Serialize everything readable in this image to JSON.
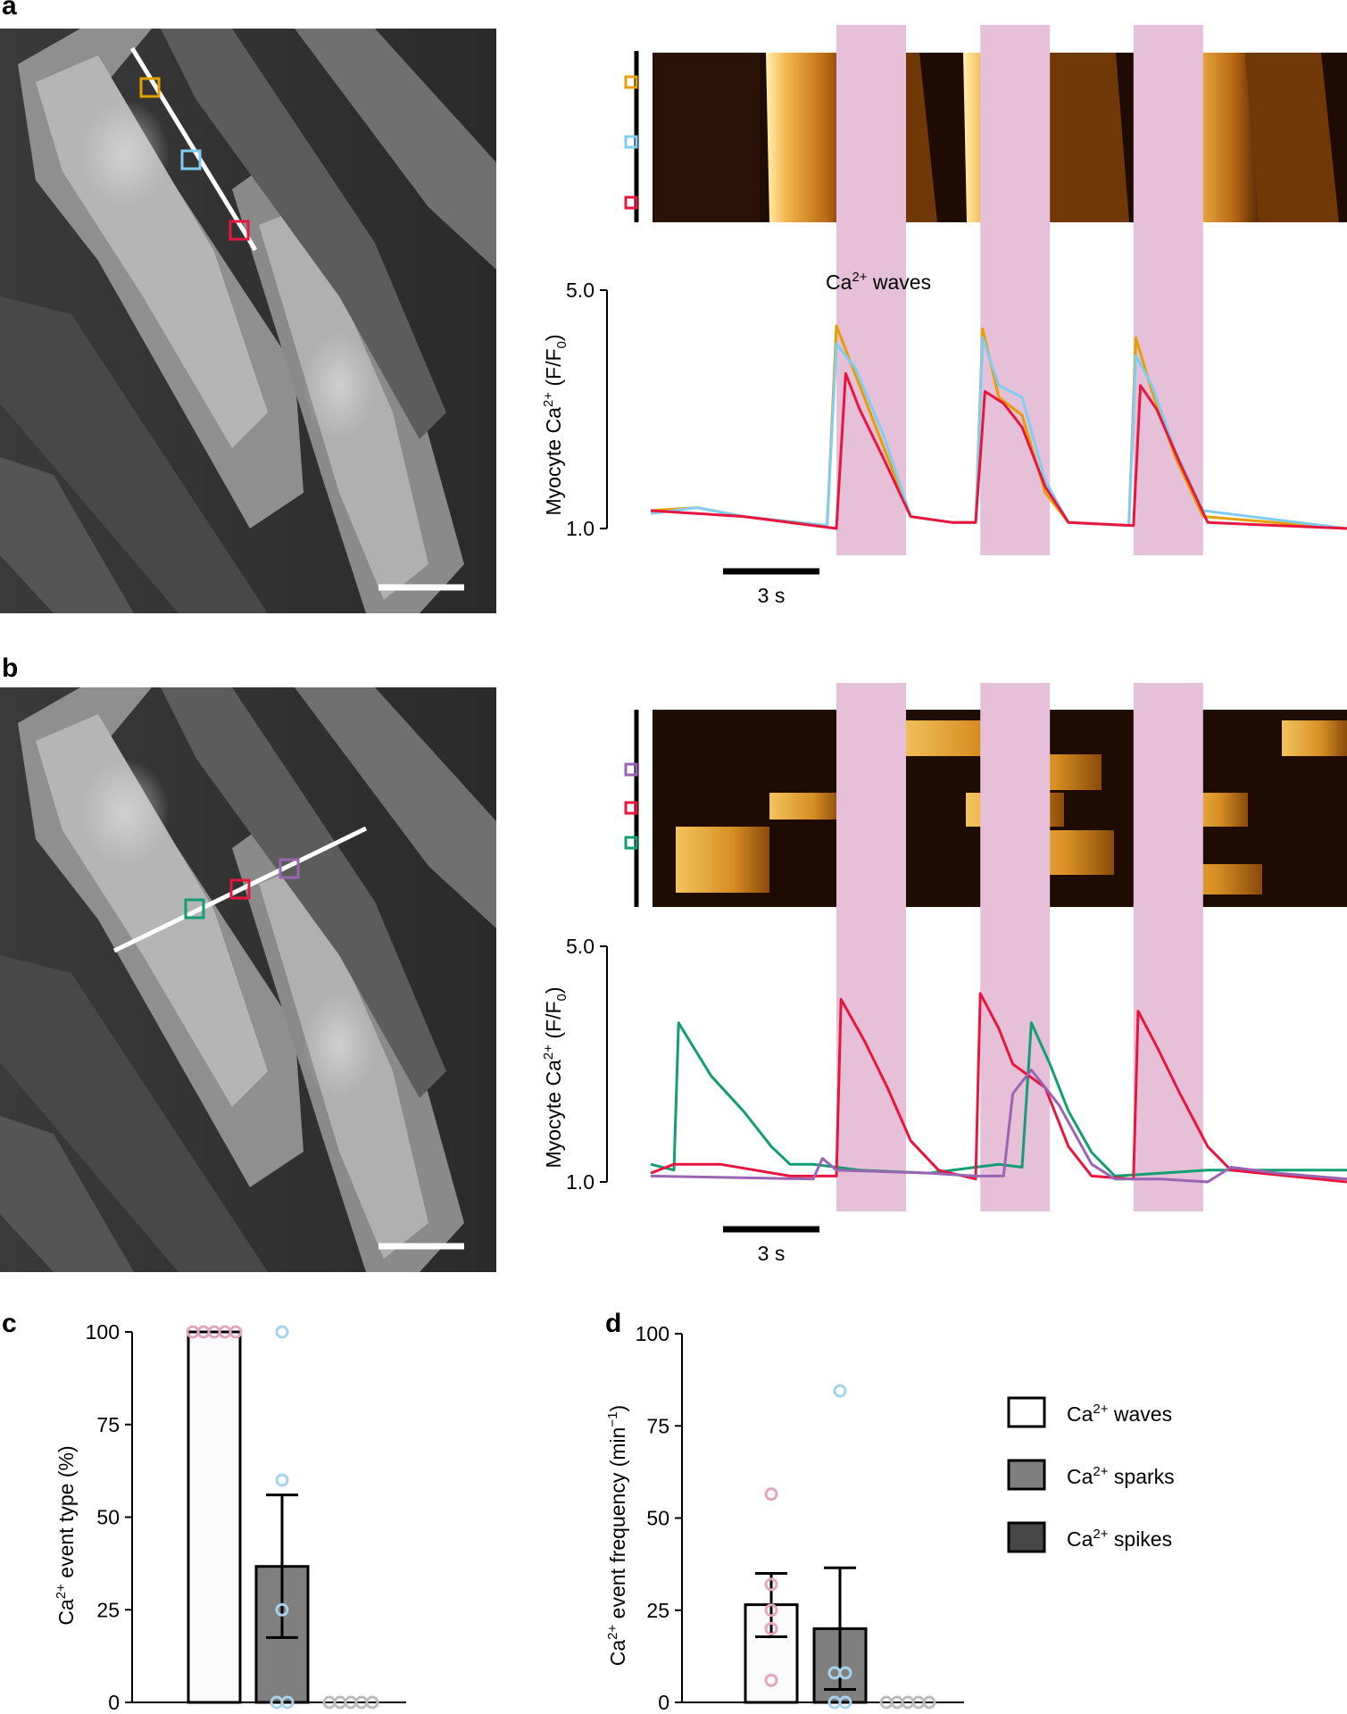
{
  "colors": {
    "orange": "#e69f00",
    "skyblue": "#7fcdf2",
    "red": "#e8163f",
    "green": "#119e73",
    "purple": "#9a63b4",
    "pink_band": "#e6bfd9",
    "pink_dot": "#e3a6bf",
    "blue_dot": "#a6d2ec",
    "gray_dot": "#bdbdbd",
    "bar_waves": "#ffffff",
    "bar_sparks": "#7f7f7f",
    "bar_spikes": "#474747"
  },
  "panels": {
    "a": {
      "label": "a",
      "annotation": "Ca",
      "annotation_sup": "2+",
      "annotation_suffix": " waves",
      "scalebar_label": "3 s",
      "ylabel": "Myocyte Ca",
      "ylabel_sup": "2+",
      "ylabel_suffix": " (F/F",
      "ylabel_sub": "0",
      "ylabel_end": ")",
      "yticks": [
        "1.0",
        "5.0"
      ],
      "roi_colors": [
        "orange",
        "skyblue",
        "red"
      ]
    },
    "b": {
      "label": "b",
      "scalebar_label": "3 s",
      "ylabel": "Myocyte Ca",
      "ylabel_sup": "2+",
      "ylabel_suffix": " (F/F",
      "ylabel_sub": "0",
      "ylabel_end": ")",
      "yticks": [
        "1.0",
        "5.0"
      ],
      "roi_colors": [
        "purple",
        "red",
        "green"
      ]
    },
    "c": {
      "label": "c"
    },
    "d": {
      "label": "d"
    }
  },
  "legend": [
    {
      "label": "Ca",
      "sup": "2+",
      "suffix": " waves",
      "fill": "bar_waves"
    },
    {
      "label": "Ca",
      "sup": "2+",
      "suffix": " sparks",
      "fill": "bar_sparks"
    },
    {
      "label": "Ca",
      "sup": "2+",
      "suffix": " spikes",
      "fill": "bar_spikes"
    }
  ],
  "chart_data": [
    {
      "panel": "a",
      "type": "line",
      "ylim": [
        1.0,
        5.0
      ],
      "y_ticks": [
        1.0,
        5.0
      ],
      "x_unit": "s",
      "x_range": [
        -1.0,
        14.0
      ],
      "shaded_intervals": [
        [
          3.0,
          4.5
        ],
        [
          6.1,
          7.6
        ],
        [
          9.4,
          10.9
        ]
      ],
      "series": [
        {
          "color": "orange",
          "points": [
            [
              -1,
              1.3
            ],
            [
              0,
              1.35
            ],
            [
              1,
              1.2
            ],
            [
              2.8,
              1.05
            ],
            [
              3.0,
              4.4
            ],
            [
              3.4,
              3.6
            ],
            [
              4.0,
              2.4
            ],
            [
              4.6,
              1.2
            ],
            [
              5.5,
              1.1
            ],
            [
              6.0,
              1.1
            ],
            [
              6.15,
              4.35
            ],
            [
              6.5,
              3.2
            ],
            [
              7.0,
              2.9
            ],
            [
              7.5,
              1.6
            ],
            [
              8.0,
              1.1
            ],
            [
              9.3,
              1.05
            ],
            [
              9.45,
              4.2
            ],
            [
              9.8,
              3.3
            ],
            [
              10.3,
              2.2
            ],
            [
              10.9,
              1.2
            ],
            [
              14,
              1.0
            ]
          ]
        },
        {
          "color": "skyblue",
          "points": [
            [
              -1,
              1.25
            ],
            [
              0,
              1.35
            ],
            [
              1,
              1.2
            ],
            [
              2.8,
              1.05
            ],
            [
              3.0,
              4.1
            ],
            [
              3.4,
              3.7
            ],
            [
              4.0,
              2.6
            ],
            [
              4.6,
              1.2
            ],
            [
              5.5,
              1.1
            ],
            [
              6.0,
              1.1
            ],
            [
              6.15,
              4.2
            ],
            [
              6.5,
              3.4
            ],
            [
              7.0,
              3.2
            ],
            [
              7.5,
              1.8
            ],
            [
              8.0,
              1.1
            ],
            [
              9.3,
              1.05
            ],
            [
              9.45,
              3.9
            ],
            [
              9.8,
              3.4
            ],
            [
              10.3,
              2.3
            ],
            [
              10.9,
              1.3
            ],
            [
              14,
              1.0
            ]
          ]
        },
        {
          "color": "red",
          "points": [
            [
              -1,
              1.3
            ],
            [
              0,
              1.25
            ],
            [
              1,
              1.2
            ],
            [
              3.0,
              1.0
            ],
            [
              3.2,
              3.6
            ],
            [
              3.5,
              3.0
            ],
            [
              4.0,
              2.2
            ],
            [
              4.6,
              1.2
            ],
            [
              5.5,
              1.1
            ],
            [
              6.0,
              1.1
            ],
            [
              6.2,
              3.3
            ],
            [
              6.6,
              3.1
            ],
            [
              7.0,
              2.7
            ],
            [
              7.5,
              1.7
            ],
            [
              8.0,
              1.1
            ],
            [
              9.4,
              1.05
            ],
            [
              9.55,
              3.4
            ],
            [
              9.9,
              3.0
            ],
            [
              10.4,
              2.1
            ],
            [
              11.0,
              1.1
            ],
            [
              14,
              1.0
            ]
          ]
        }
      ]
    },
    {
      "panel": "b",
      "type": "line",
      "ylim": [
        1.0,
        5.0
      ],
      "y_ticks": [
        1.0,
        5.0
      ],
      "x_unit": "s",
      "x_range": [
        -1.0,
        14.0
      ],
      "shaded_intervals": [
        [
          3.0,
          4.5
        ],
        [
          6.1,
          7.6
        ],
        [
          9.4,
          10.9
        ]
      ],
      "series": [
        {
          "color": "green",
          "points": [
            [
              -1,
              1.3
            ],
            [
              -0.5,
              1.2
            ],
            [
              -0.4,
              3.7
            ],
            [
              0.3,
              2.8
            ],
            [
              1,
              2.2
            ],
            [
              1.6,
              1.6
            ],
            [
              2.0,
              1.3
            ],
            [
              2.5,
              1.3
            ],
            [
              3.5,
              1.2
            ],
            [
              5.0,
              1.15
            ],
            [
              6.0,
              1.25
            ],
            [
              6.5,
              1.3
            ],
            [
              7.0,
              1.25
            ],
            [
              7.2,
              3.7
            ],
            [
              7.6,
              3.0
            ],
            [
              8.0,
              2.2
            ],
            [
              8.5,
              1.5
            ],
            [
              9.0,
              1.1
            ],
            [
              10.0,
              1.15
            ],
            [
              11.0,
              1.2
            ],
            [
              14,
              1.2
            ]
          ]
        },
        {
          "color": "red",
          "points": [
            [
              -1,
              1.15
            ],
            [
              -0.5,
              1.3
            ],
            [
              0.5,
              1.3
            ],
            [
              2.0,
              1.1
            ],
            [
              3.0,
              1.1
            ],
            [
              3.1,
              4.1
            ],
            [
              3.6,
              3.4
            ],
            [
              4.1,
              2.6
            ],
            [
              4.6,
              1.7
            ],
            [
              5.2,
              1.2
            ],
            [
              6.0,
              1.05
            ],
            [
              6.1,
              4.2
            ],
            [
              6.5,
              3.6
            ],
            [
              6.8,
              3.0
            ],
            [
              7.5,
              2.6
            ],
            [
              8.0,
              1.6
            ],
            [
              8.5,
              1.1
            ],
            [
              9.4,
              1.05
            ],
            [
              9.5,
              3.9
            ],
            [
              9.9,
              3.3
            ],
            [
              10.4,
              2.5
            ],
            [
              11.0,
              1.6
            ],
            [
              11.5,
              1.2
            ],
            [
              14,
              1.0
            ]
          ]
        },
        {
          "color": "purple",
          "points": [
            [
              -1,
              1.1
            ],
            [
              2.5,
              1.05
            ],
            [
              2.7,
              1.4
            ],
            [
              3.0,
              1.2
            ],
            [
              5.0,
              1.15
            ],
            [
              6.0,
              1.1
            ],
            [
              6.6,
              1.1
            ],
            [
              6.8,
              2.5
            ],
            [
              7.2,
              2.9
            ],
            [
              7.8,
              2.3
            ],
            [
              8.5,
              1.3
            ],
            [
              9.0,
              1.05
            ],
            [
              10.0,
              1.05
            ],
            [
              11.0,
              1.0
            ],
            [
              11.5,
              1.25
            ],
            [
              12.5,
              1.15
            ],
            [
              14,
              1.05
            ]
          ]
        }
      ]
    },
    {
      "panel": "c",
      "type": "bar",
      "ylabel": "Ca2+ event type (%)",
      "ylabel_parts": {
        "pre": "Ca",
        "sup": "2+",
        "post": " event type (%)"
      },
      "ylim": [
        0,
        100
      ],
      "y_ticks": [
        0,
        25,
        50,
        75,
        100
      ],
      "categories": [
        "Ca2+ waves",
        "Ca2+ sparks",
        "Ca2+ spikes"
      ],
      "values": [
        100,
        36.7,
        0
      ],
      "error_high": [
        100,
        56,
        0
      ],
      "error_low": [
        100,
        17.5,
        0
      ],
      "points": [
        [
          100,
          100,
          100,
          100,
          100
        ],
        [
          100,
          60,
          25,
          0,
          0
        ],
        [
          0,
          0,
          0,
          0,
          0
        ]
      ]
    },
    {
      "panel": "d",
      "type": "bar",
      "ylabel": "Ca2+ event frequency (min−1)",
      "ylabel_parts": {
        "pre": "Ca",
        "sup": "2+",
        "post": " event frequency (min",
        "sup2": "−1",
        "end": ")"
      },
      "ylim": [
        0,
        100
      ],
      "y_ticks": [
        0,
        25,
        50,
        75,
        100
      ],
      "categories": [
        "Ca2+ waves",
        "Ca2+ sparks",
        "Ca2+ spikes"
      ],
      "values": [
        26.5,
        20.0,
        0
      ],
      "error_high": [
        35,
        36.5,
        0
      ],
      "error_low": [
        17.8,
        3.5,
        0
      ],
      "points": [
        [
          56.5,
          32,
          25,
          20,
          6
        ],
        [
          84.5,
          8,
          8,
          0,
          0
        ],
        [
          0,
          0,
          0,
          0,
          0
        ]
      ]
    }
  ]
}
